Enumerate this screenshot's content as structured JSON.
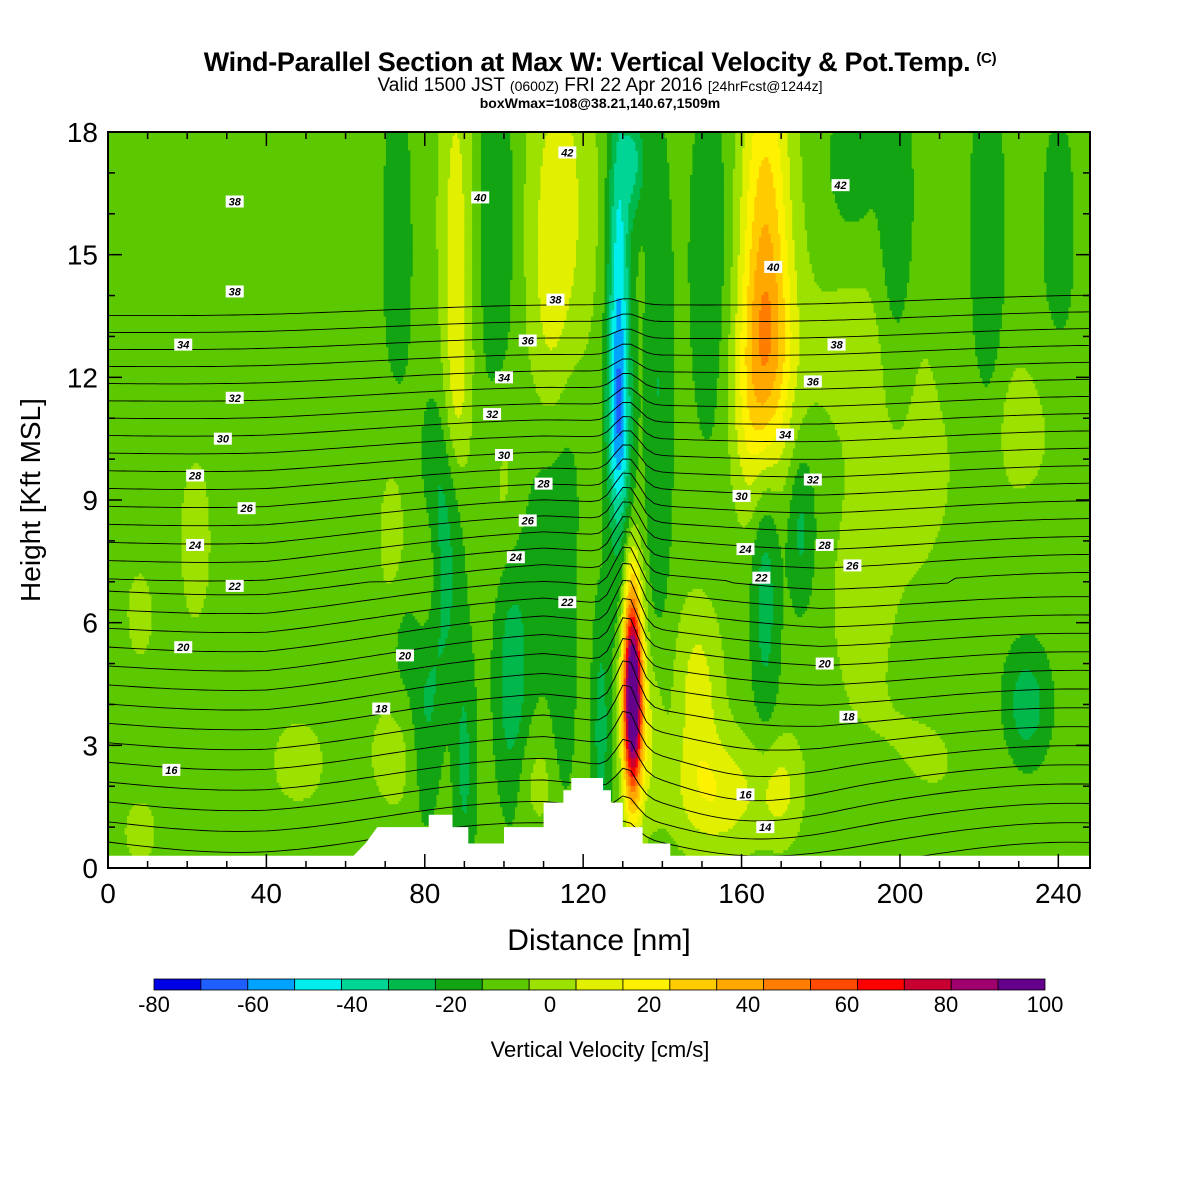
{
  "header": {
    "title": "Wind-Parallel Section at Max W: Vertical Velocity & Pot.Temp.",
    "copyright": "(C)",
    "valid_prefix": "Valid 1500 JST",
    "valid_utc": "(0600Z)",
    "valid_date": "FRI 22 Apr 2016",
    "forecast": "[24hrFcst@1244z]",
    "boxwmax": "boxWmax=108@38.21,140.67,1509m"
  },
  "chart_data": {
    "type": "heatmap",
    "title": "Wind-Parallel Section at Max W: Vertical Velocity & Pot.Temp.",
    "xlabel": "Distance [nm]",
    "ylabel": "Height [Kft MSL]",
    "xlim": [
      0,
      248
    ],
    "ylim": [
      0,
      18
    ],
    "x_ticks": [
      0,
      40,
      80,
      120,
      160,
      200,
      240
    ],
    "y_ticks": [
      0,
      3,
      6,
      9,
      12,
      15,
      18
    ],
    "colorbar": {
      "label": "Vertical Velocity [cm/s]",
      "ticks": [
        -80,
        -60,
        -40,
        -20,
        0,
        20,
        40,
        60,
        80,
        100
      ],
      "bins": [
        -80,
        -70,
        -60,
        -50,
        -40,
        -30,
        -20,
        -10,
        0,
        10,
        20,
        30,
        40,
        50,
        60,
        70,
        80,
        90,
        100
      ],
      "colors": [
        "#0000e6",
        "#1f5fff",
        "#00a2ff",
        "#00eeee",
        "#00d596",
        "#00b84b",
        "#13a413",
        "#5cc800",
        "#9ce100",
        "#e2f000",
        "#fff200",
        "#ffcc00",
        "#ffa800",
        "#ff7d00",
        "#ff4a00",
        "#ff0000",
        "#c80032",
        "#a0006e",
        "#64008c"
      ]
    },
    "background_value": -5,
    "terrain_kft": [
      [
        0,
        0.3
      ],
      [
        62,
        0.3
      ],
      [
        65,
        0.6
      ],
      [
        68,
        1.0
      ],
      [
        81,
        1.0
      ],
      [
        81,
        1.3
      ],
      [
        87,
        1.3
      ],
      [
        87,
        1.0
      ],
      [
        91,
        1.0
      ],
      [
        91,
        0.6
      ],
      [
        100,
        0.6
      ],
      [
        100,
        1.0
      ],
      [
        110,
        1.0
      ],
      [
        110,
        1.6
      ],
      [
        115,
        1.6
      ],
      [
        115,
        1.9
      ],
      [
        117,
        1.9
      ],
      [
        117,
        2.2
      ],
      [
        125,
        2.2
      ],
      [
        125,
        1.9
      ],
      [
        127,
        1.9
      ],
      [
        127,
        1.6
      ],
      [
        130,
        1.6
      ],
      [
        130,
        1.0
      ],
      [
        135,
        1.0
      ],
      [
        135,
        0.6
      ],
      [
        142,
        0.6
      ],
      [
        142,
        0.3
      ],
      [
        248,
        0.3
      ]
    ],
    "w_features": [
      {
        "x": 132.5,
        "y": 4.2,
        "sx": 1.7,
        "sy": 1.7,
        "a": 140
      },
      {
        "x": 132,
        "y": 7.2,
        "sx": 1.4,
        "sy": 0.9,
        "a": 10
      },
      {
        "x": 137,
        "y": 3.2,
        "sx": 2.5,
        "sy": 1.4,
        "a": 15
      },
      {
        "x": 149,
        "y": 4.3,
        "sx": 4,
        "sy": 1.6,
        "a": 20
      },
      {
        "x": 154,
        "y": 1.8,
        "sx": 8,
        "sy": 1.0,
        "a": 22
      },
      {
        "x": 170,
        "y": 1.9,
        "sx": 4,
        "sy": 0.9,
        "a": 17
      },
      {
        "x": 129,
        "y": 13.5,
        "sx": 2.0,
        "sy": 4.0,
        "a": -44
      },
      {
        "x": 129,
        "y": 10.8,
        "sx": 2.2,
        "sy": 1.5,
        "a": -22
      },
      {
        "x": 133,
        "y": 17.3,
        "sx": 1.8,
        "sy": 1.0,
        "a": -24
      },
      {
        "x": 139,
        "y": 11.8,
        "sx": 2.5,
        "sy": 4.5,
        "a": -15
      },
      {
        "x": 124.5,
        "y": 3.3,
        "sx": 1.6,
        "sy": 2.2,
        "a": -20
      },
      {
        "x": 166,
        "y": 15.5,
        "sx": 4.5,
        "sy": 3.5,
        "a": 40
      },
      {
        "x": 166,
        "y": 12.5,
        "sx": 5.0,
        "sy": 1.8,
        "a": 25
      },
      {
        "x": 163,
        "y": 10.5,
        "sx": 4,
        "sy": 1.5,
        "a": 12
      },
      {
        "x": 114,
        "y": 16.3,
        "sx": 6,
        "sy": 3.0,
        "a": 20
      },
      {
        "x": 112,
        "y": 12.8,
        "sx": 4,
        "sy": 2.0,
        "a": 10
      },
      {
        "x": 88,
        "y": 15.5,
        "sx": 3,
        "sy": 3.5,
        "a": 20
      },
      {
        "x": 88,
        "y": 11.5,
        "sx": 2.5,
        "sy": 1.6,
        "a": 12
      },
      {
        "x": 100,
        "y": 9.4,
        "sx": 3,
        "sy": 1.6,
        "a": 10
      },
      {
        "x": 72,
        "y": 8.0,
        "sx": 3,
        "sy": 2.0,
        "a": 10
      },
      {
        "x": 81,
        "y": 7.3,
        "sx": 2.5,
        "sy": 1.3,
        "a": 18
      },
      {
        "x": 75,
        "y": 2.8,
        "sx": 7,
        "sy": 1.2,
        "a": 10
      },
      {
        "x": 48,
        "y": 2.6,
        "sx": 5,
        "sy": 0.8,
        "a": 10
      },
      {
        "x": 108,
        "y": 2.2,
        "sx": 4,
        "sy": 1.0,
        "a": 10
      },
      {
        "x": 22,
        "y": 8.0,
        "sx": 3,
        "sy": 1.6,
        "a": 10
      },
      {
        "x": 8,
        "y": 6.2,
        "sx": 3,
        "sy": 1.0,
        "a": 8
      },
      {
        "x": 8,
        "y": 0.9,
        "sx": 3,
        "sy": 0.6,
        "a": 10
      },
      {
        "x": 200,
        "y": 9.2,
        "sx": 10,
        "sy": 1.8,
        "a": 9
      },
      {
        "x": 230,
        "y": 10.8,
        "sx": 8,
        "sy": 1.4,
        "a": 9
      },
      {
        "x": 190,
        "y": 12.8,
        "sx": 14,
        "sy": 1.6,
        "a": 8
      },
      {
        "x": 200,
        "y": 2.5,
        "sx": 14,
        "sy": 1.3,
        "a": 8
      },
      {
        "x": 190,
        "y": 6.2,
        "sx": 6,
        "sy": 1.6,
        "a": 8
      },
      {
        "x": 175,
        "y": 8.3,
        "sx": 2.5,
        "sy": 1.4,
        "a": -18
      },
      {
        "x": 166,
        "y": 7.0,
        "sx": 2.5,
        "sy": 2.5,
        "a": -22
      },
      {
        "x": 84,
        "y": 7.8,
        "sx": 3.5,
        "sy": 2.5,
        "a": -25
      },
      {
        "x": 102,
        "y": 4.5,
        "sx": 3,
        "sy": 2.2,
        "a": -22
      },
      {
        "x": 115,
        "y": 4.0,
        "sx": 2,
        "sy": 1.8,
        "a": -12
      },
      {
        "x": 110,
        "y": 7.8,
        "sx": 4,
        "sy": 3.0,
        "a": -10
      },
      {
        "x": 80,
        "y": 3.2,
        "sx": 3,
        "sy": 1.6,
        "a": -18
      },
      {
        "x": 90,
        "y": 2.5,
        "sx": 2,
        "sy": 2.0,
        "a": -18
      },
      {
        "x": 74,
        "y": 5.5,
        "sx": 3,
        "sy": 1.2,
        "a": -10
      },
      {
        "x": 98,
        "y": 16.0,
        "sx": 4,
        "sy": 4.0,
        "a": -12
      },
      {
        "x": 73,
        "y": 15.2,
        "sx": 3,
        "sy": 3.5,
        "a": -10
      },
      {
        "x": 116,
        "y": 10.0,
        "sx": 3,
        "sy": 2.5,
        "a": -8
      },
      {
        "x": 152,
        "y": 14.8,
        "sx": 4,
        "sy": 3.5,
        "a": -12
      },
      {
        "x": 188,
        "y": 17.3,
        "sx": 4,
        "sy": 1.2,
        "a": -14
      },
      {
        "x": 199,
        "y": 15.5,
        "sx": 3,
        "sy": 3.0,
        "a": -15
      },
      {
        "x": 222,
        "y": 15.0,
        "sx": 3,
        "sy": 3.5,
        "a": -15
      },
      {
        "x": 240,
        "y": 15.5,
        "sx": 4,
        "sy": 3.0,
        "a": -8
      },
      {
        "x": 232,
        "y": 4.0,
        "sx": 4,
        "sy": 1.0,
        "a": -22
      },
      {
        "x": 190,
        "y": 1.8,
        "sx": 10,
        "sy": 1.0,
        "a": -8
      }
    ],
    "theta_levels": [
      12,
      13,
      14,
      15,
      16,
      17,
      18,
      19,
      20,
      21,
      22,
      23,
      24,
      25,
      26,
      27,
      28,
      29,
      30,
      31,
      32,
      33,
      34,
      35,
      36,
      37,
      38,
      39,
      40,
      41,
      42,
      43
    ],
    "theta_labels": [
      {
        "v": "42",
        "x": 116,
        "y": 17.5
      },
      {
        "v": "40",
        "x": 94,
        "y": 16.4
      },
      {
        "v": "38",
        "x": 32,
        "y": 16.3
      },
      {
        "v": "38",
        "x": 32,
        "y": 14.1
      },
      {
        "v": "38",
        "x": 113,
        "y": 13.9
      },
      {
        "v": "36",
        "x": 106,
        "y": 12.9
      },
      {
        "v": "34",
        "x": 19,
        "y": 12.8
      },
      {
        "v": "34",
        "x": 100,
        "y": 12.0
      },
      {
        "v": "32",
        "x": 32,
        "y": 11.5
      },
      {
        "v": "32",
        "x": 97,
        "y": 11.1
      },
      {
        "v": "30",
        "x": 29,
        "y": 10.5
      },
      {
        "v": "30",
        "x": 100,
        "y": 10.1
      },
      {
        "v": "28",
        "x": 22,
        "y": 9.6
      },
      {
        "v": "28",
        "x": 110,
        "y": 9.4
      },
      {
        "v": "26",
        "x": 35,
        "y": 8.8
      },
      {
        "v": "26",
        "x": 106,
        "y": 8.5
      },
      {
        "v": "24",
        "x": 22,
        "y": 7.9
      },
      {
        "v": "24",
        "x": 103,
        "y": 7.6
      },
      {
        "v": "22",
        "x": 32,
        "y": 6.9
      },
      {
        "v": "22",
        "x": 116,
        "y": 6.5
      },
      {
        "v": "20",
        "x": 19,
        "y": 5.4
      },
      {
        "v": "20",
        "x": 75,
        "y": 5.2
      },
      {
        "v": "18",
        "x": 69,
        "y": 3.9
      },
      {
        "v": "16",
        "x": 16,
        "y": 2.4
      },
      {
        "v": "42",
        "x": 185,
        "y": 16.7
      },
      {
        "v": "40",
        "x": 168,
        "y": 14.7
      },
      {
        "v": "38",
        "x": 184,
        "y": 12.8
      },
      {
        "v": "36",
        "x": 178,
        "y": 11.9
      },
      {
        "v": "34",
        "x": 171,
        "y": 10.6
      },
      {
        "v": "32",
        "x": 178,
        "y": 9.5
      },
      {
        "v": "30",
        "x": 160,
        "y": 9.1
      },
      {
        "v": "28",
        "x": 181,
        "y": 7.9
      },
      {
        "v": "26",
        "x": 188,
        "y": 7.4
      },
      {
        "v": "24",
        "x": 161,
        "y": 7.8
      },
      {
        "v": "22",
        "x": 165,
        "y": 7.1
      },
      {
        "v": "20",
        "x": 181,
        "y": 5.0
      },
      {
        "v": "18",
        "x": 187,
        "y": 3.7
      },
      {
        "v": "16",
        "x": 161,
        "y": 1.8
      },
      {
        "v": "14",
        "x": 166,
        "y": 1.0
      }
    ]
  }
}
